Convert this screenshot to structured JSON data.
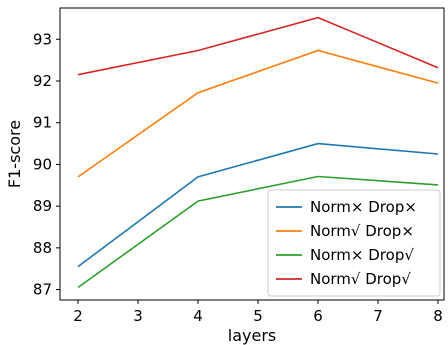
{
  "chart_data": {
    "type": "line",
    "title": "",
    "xlabel": "layers",
    "ylabel": "F1-score",
    "x": [
      2,
      4,
      6,
      8
    ],
    "xlim": [
      1.7,
      8.1
    ],
    "ylim": [
      86.75,
      93.75
    ],
    "xticks": [
      2,
      3,
      4,
      5,
      6,
      7,
      8
    ],
    "yticks": [
      87,
      88,
      89,
      90,
      91,
      92,
      93
    ],
    "grid": false,
    "legend_position": "lower-right",
    "series": [
      {
        "name": "Norm× Drop×",
        "color": "#1f77b4",
        "values": [
          87.55,
          89.7,
          90.5,
          90.25
        ]
      },
      {
        "name": "Norm√ Drop×",
        "color": "#ff7f0e",
        "values": [
          89.7,
          91.72,
          92.73,
          91.95
        ]
      },
      {
        "name": "Norm× Drop√",
        "color": "#2ca02c",
        "values": [
          87.05,
          89.12,
          89.71,
          89.51
        ]
      },
      {
        "name": "Norm√ Drop√",
        "color": "#d62728",
        "values": [
          92.15,
          92.73,
          93.52,
          92.32
        ]
      }
    ]
  }
}
